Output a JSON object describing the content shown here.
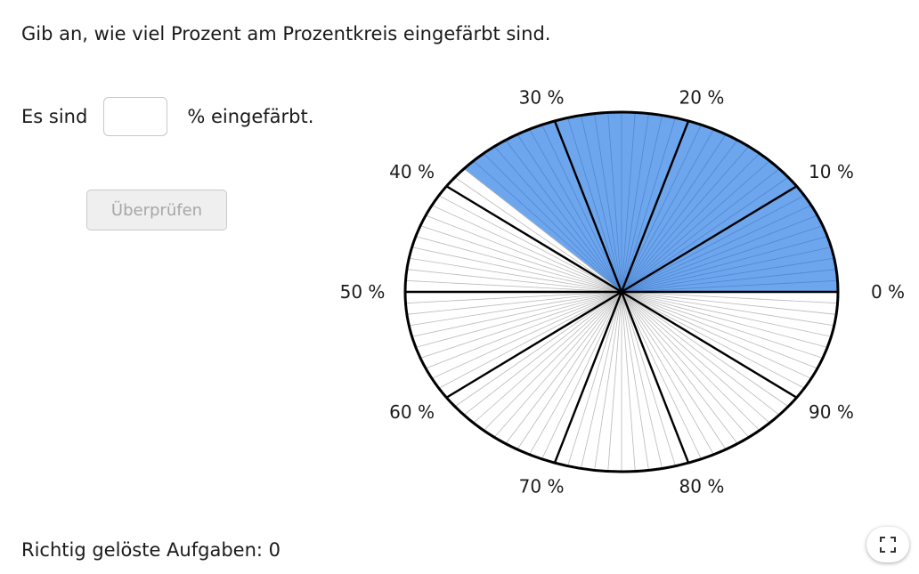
{
  "instruction": "Gib an, wie viel Prozent am Prozentkreis eingefärbt sind.",
  "answer": {
    "prefix": "Es sind",
    "input_value": "",
    "suffix": "% eingefärbt."
  },
  "check_button_label": "Überprüfen",
  "score_text": "Richtig gelöste Aufgaben: 0",
  "icons": {
    "fullscreen": "fullscreen-icon"
  },
  "colors": {
    "fill": "#6ea6ee",
    "border": "#000000",
    "fine_line": "#b9b9b9"
  },
  "chart_data": {
    "type": "pie",
    "filled_percent": 38,
    "tick_labels": [
      "0 %",
      "10 %",
      "20 %",
      "30 %",
      "40 %",
      "50 %",
      "60 %",
      "70 %",
      "80 %",
      "90 %"
    ],
    "minor_divisions": 100,
    "major_divisions": 10
  }
}
